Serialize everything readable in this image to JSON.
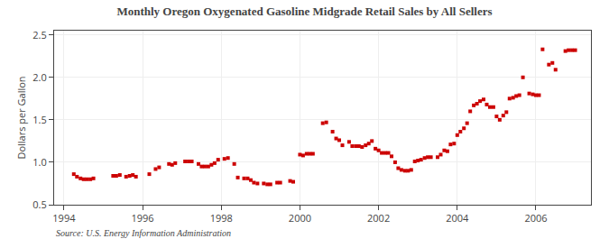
{
  "chart_data": {
    "type": "scatter",
    "title": "Monthly Oregon Oxygenated Gasoline Midgrade Retail Sales by All Sellers",
    "ylabel": "Dollars per Gallon",
    "source": "Source: U.S. Energy Information Administration",
    "color": "#cc0000",
    "marker": "square",
    "grid": true,
    "xlim": [
      1993.75,
      2007.4
    ],
    "ylim": [
      0.5,
      2.55
    ],
    "xticks": [
      1994,
      1996,
      1998,
      2000,
      2002,
      2004,
      2006
    ],
    "yticks": [
      0.5,
      {
        "value": 1.0,
        "label": "1.0"
      },
      1.5,
      {
        "value": 2.0,
        "label": "2.0"
      },
      2.5
    ],
    "x": [
      1994.25,
      1994.33,
      1994.42,
      1994.5,
      1994.58,
      1994.67,
      1994.75,
      1995.25,
      1995.33,
      1995.42,
      1995.58,
      1995.67,
      1995.75,
      1995.83,
      1996.17,
      1996.33,
      1996.42,
      1996.67,
      1996.75,
      1996.83,
      1997.08,
      1997.17,
      1997.25,
      1997.42,
      1997.5,
      1997.58,
      1997.67,
      1997.75,
      1997.83,
      1997.92,
      1998.08,
      1998.17,
      1998.33,
      1998.42,
      1998.58,
      1998.67,
      1998.75,
      1998.83,
      1998.92,
      1999.08,
      1999.17,
      1999.25,
      1999.42,
      1999.5,
      1999.75,
      1999.83,
      2000.0,
      2000.08,
      2000.17,
      2000.25,
      2000.33,
      2000.58,
      2000.67,
      2000.83,
      2000.92,
      2001.0,
      2001.08,
      2001.25,
      2001.33,
      2001.42,
      2001.5,
      2001.58,
      2001.67,
      2001.75,
      2001.83,
      2001.92,
      2002.0,
      2002.08,
      2002.17,
      2002.25,
      2002.33,
      2002.42,
      2002.5,
      2002.58,
      2002.67,
      2002.75,
      2002.83,
      2002.92,
      2003.0,
      2003.08,
      2003.17,
      2003.25,
      2003.33,
      2003.5,
      2003.58,
      2003.67,
      2003.75,
      2003.83,
      2003.92,
      2004.0,
      2004.08,
      2004.17,
      2004.25,
      2004.33,
      2004.42,
      2004.5,
      2004.58,
      2004.67,
      2004.75,
      2004.83,
      2004.92,
      2005.0,
      2005.08,
      2005.17,
      2005.25,
      2005.33,
      2005.42,
      2005.5,
      2005.58,
      2005.67,
      2005.83,
      2005.92,
      2006.0,
      2006.08,
      2006.17,
      2006.33,
      2006.42,
      2006.5,
      2006.75,
      2006.83,
      2006.92,
      2007.0
    ],
    "values": [
      0.86,
      0.83,
      0.81,
      0.8,
      0.8,
      0.8,
      0.81,
      0.84,
      0.84,
      0.85,
      0.83,
      0.84,
      0.85,
      0.83,
      0.86,
      0.92,
      0.94,
      0.98,
      0.97,
      0.99,
      1.01,
      1.01,
      1.01,
      0.98,
      0.95,
      0.95,
      0.95,
      0.97,
      0.99,
      1.03,
      1.04,
      1.05,
      0.98,
      0.82,
      0.81,
      0.81,
      0.79,
      0.76,
      0.75,
      0.75,
      0.74,
      0.74,
      0.76,
      0.76,
      0.78,
      0.77,
      1.09,
      1.08,
      1.1,
      1.1,
      1.1,
      1.46,
      1.47,
      1.36,
      1.28,
      1.26,
      1.2,
      1.24,
      1.19,
      1.19,
      1.19,
      1.18,
      1.2,
      1.22,
      1.25,
      1.16,
      1.14,
      1.11,
      1.11,
      1.11,
      1.07,
      1.0,
      0.93,
      0.91,
      0.9,
      0.9,
      0.91,
      1.01,
      1.02,
      1.03,
      1.05,
      1.06,
      1.06,
      1.06,
      1.09,
      1.14,
      1.13,
      1.21,
      1.22,
      1.32,
      1.36,
      1.4,
      1.46,
      1.6,
      1.67,
      1.69,
      1.72,
      1.74,
      1.68,
      1.65,
      1.65,
      1.54,
      1.5,
      1.55,
      1.59,
      1.75,
      1.76,
      1.78,
      1.79,
      2.0,
      1.81,
      1.8,
      1.79,
      1.79,
      2.33,
      2.15,
      2.17,
      2.09,
      2.31,
      2.32,
      2.32,
      2.32
    ]
  }
}
